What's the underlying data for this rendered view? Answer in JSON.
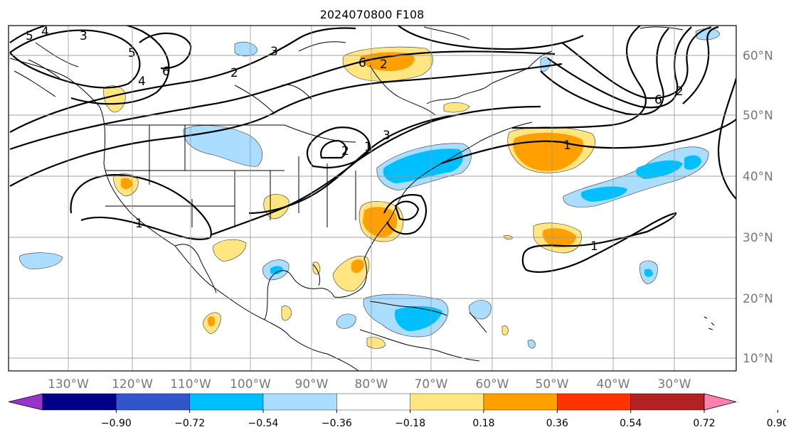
{
  "title": "2024070800 F108",
  "lon_labels": [
    "130°W",
    "120°W",
    "110°W",
    "100°W",
    "90°W",
    "80°W",
    "70°W",
    "60°W",
    "50°W",
    "40°W",
    "30°W"
  ],
  "lat_labels": [
    "60°N",
    "50°N",
    "40°N",
    "30°N",
    "20°N",
    "10°N"
  ],
  "contour_labels": [
    "5",
    "4",
    "3",
    "5",
    "6",
    "4",
    "3",
    "2",
    "6",
    "2",
    "3",
    "1",
    "2",
    "1",
    "6",
    "2",
    "1",
    "1"
  ],
  "colorbar": {
    "ticks": [
      "−0.90",
      "−0.72",
      "−0.54",
      "−0.36",
      "−0.18",
      "0.18",
      "0.36",
      "0.54",
      "0.72",
      "0.90"
    ],
    "colors": [
      "#9933cc",
      "#000088",
      "#3355cc",
      "#00bfff",
      "#aaddff",
      "#ffffff",
      "#ffe680",
      "#ffa000",
      "#ff3300",
      "#b22222",
      "#ff80b0"
    ]
  }
}
